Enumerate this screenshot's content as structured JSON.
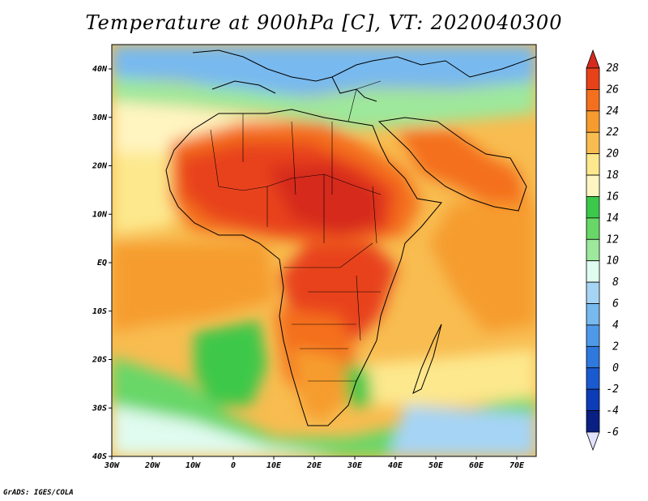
{
  "title": "Temperature at 900hPa [C], VT: 2020040300",
  "credit": "GrADS: IGES/COLA",
  "map": {
    "variable": "Temperature",
    "level": "900hPa",
    "units": "C",
    "valid_time": "2020040300",
    "lat_ticks": [
      "40N",
      "30N",
      "20N",
      "10N",
      "EQ",
      "10S",
      "20S",
      "30S",
      "40S"
    ],
    "lon_ticks": [
      "30W",
      "20W",
      "10W",
      "0",
      "10E",
      "20E",
      "30E",
      "40E",
      "50E",
      "60E",
      "70E"
    ]
  },
  "colorbar": {
    "levels": [
      "28",
      "26",
      "24",
      "22",
      "20",
      "18",
      "16",
      "14",
      "12",
      "10",
      "8",
      "6",
      "4",
      "2",
      "0",
      "-2",
      "-4",
      "-6"
    ],
    "colors": {
      "above": "#d62a1e",
      "bins": [
        "#e8421a",
        "#f4701e",
        "#f69c2e",
        "#f8bc50",
        "#fde88d",
        "#fff5c1",
        "#3cc84a",
        "#68d768",
        "#9de89c",
        "#e0fbef",
        "#a6d4f5",
        "#78b9ef",
        "#4f9ae8",
        "#2f78de",
        "#1a5ad0",
        "#0d3cb8",
        "#0a1f83"
      ],
      "below": "#e2e2ff"
    }
  }
}
